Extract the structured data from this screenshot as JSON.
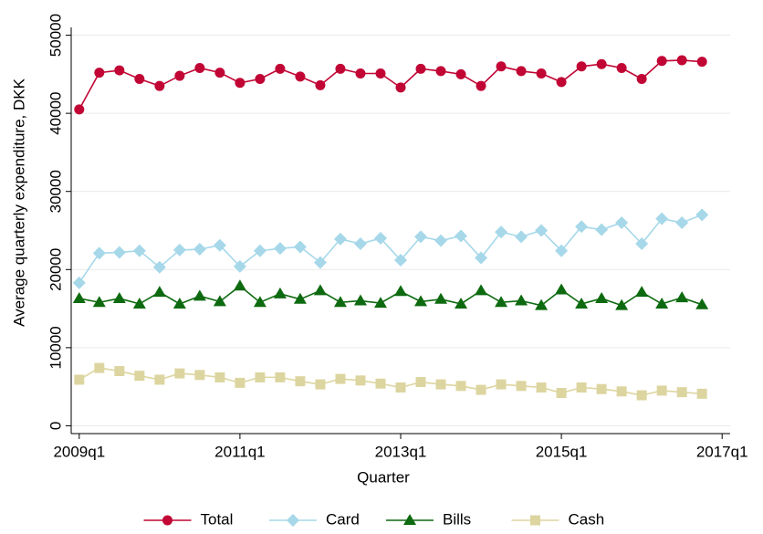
{
  "chart_data": {
    "type": "line",
    "xlabel": "Quarter",
    "ylabel": "Average quarterly expenditure, DKK",
    "x": [
      196,
      197,
      198,
      199,
      200,
      201,
      202,
      203,
      204,
      205,
      206,
      207,
      208,
      209,
      210,
      211,
      212,
      213,
      214,
      215,
      216,
      217,
      218,
      219,
      220,
      221,
      222,
      223,
      224,
      225,
      226,
      227
    ],
    "xlim": [
      195.6,
      228.4
    ],
    "xticks": [
      {
        "value": 196,
        "label": "2009q1"
      },
      {
        "value": 204,
        "label": "2011q1"
      },
      {
        "value": 212,
        "label": "2013q1"
      },
      {
        "value": 220,
        "label": "2015q1"
      },
      {
        "value": 228,
        "label": "2017q1"
      }
    ],
    "ylim": [
      -1000,
      51000
    ],
    "yticks": [
      0,
      10000,
      20000,
      30000,
      40000,
      50000
    ],
    "grid": true,
    "legend": "bottom",
    "series": [
      {
        "name": "Total",
        "color": "#c10534",
        "marker": "circle",
        "values": [
          40500,
          45200,
          45500,
          44400,
          43500,
          44800,
          45800,
          45200,
          43900,
          44400,
          45700,
          44700,
          43600,
          45700,
          45100,
          45100,
          43300,
          45700,
          45400,
          45000,
          43500,
          46000,
          45400,
          45100,
          44000,
          46000,
          46300,
          45800,
          44400,
          46700,
          46800,
          46600
        ]
      },
      {
        "name": "Card",
        "color": "#a6d8e9",
        "marker": "diamond",
        "values": [
          18300,
          22100,
          22200,
          22400,
          20300,
          22500,
          22600,
          23100,
          20400,
          22400,
          22700,
          22900,
          20900,
          23900,
          23300,
          24000,
          21200,
          24200,
          23700,
          24300,
          21500,
          24800,
          24200,
          25000,
          22400,
          25500,
          25100,
          26000,
          23300,
          26500,
          26000,
          27000
        ]
      },
      {
        "name": "Bills",
        "color": "#0e6a10",
        "marker": "triangle",
        "values": [
          16300,
          15800,
          16300,
          15600,
          17100,
          15600,
          16600,
          15900,
          17900,
          15800,
          16900,
          16200,
          17300,
          15800,
          16000,
          15700,
          17200,
          15900,
          16200,
          15600,
          17300,
          15800,
          16000,
          15400,
          17400,
          15600,
          16300,
          15400,
          17100,
          15600,
          16400,
          15500
        ]
      },
      {
        "name": "Cash",
        "color": "#ddd5a0",
        "marker": "square",
        "values": [
          5900,
          7400,
          7000,
          6400,
          5900,
          6700,
          6500,
          6200,
          5500,
          6200,
          6200,
          5700,
          5300,
          6000,
          5800,
          5400,
          4900,
          5600,
          5300,
          5100,
          4600,
          5300,
          5100,
          4900,
          4200,
          4900,
          4700,
          4400,
          3900,
          4500,
          4300,
          4100
        ]
      }
    ]
  }
}
